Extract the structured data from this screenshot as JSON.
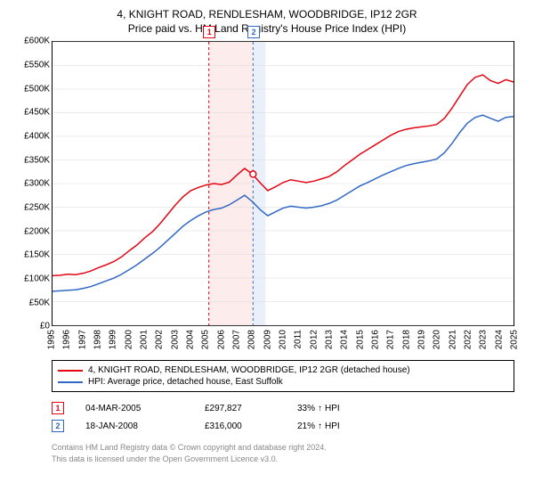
{
  "title_line1": "4, KNIGHT ROAD, RENDLESHAM, WOODBRIDGE, IP12 2GR",
  "title_line2": "Price paid vs. HM Land Registry's House Price Index (HPI)",
  "chart": {
    "type": "line",
    "background_color": "#ffffff",
    "border_color": "#000000",
    "grid_color": "#d9d9d9",
    "x_min": 1995,
    "x_max": 2025,
    "y_min": 0,
    "y_max": 600000,
    "y_tick_step": 50000,
    "y_tick_labels": [
      "£0",
      "£50K",
      "£100K",
      "£150K",
      "£200K",
      "£250K",
      "£300K",
      "£350K",
      "£400K",
      "£450K",
      "£500K",
      "£550K",
      "£600K"
    ],
    "x_ticks": [
      1995,
      1996,
      1997,
      1998,
      1999,
      2000,
      2001,
      2002,
      2003,
      2004,
      2005,
      2006,
      2007,
      2008,
      2009,
      2010,
      2011,
      2012,
      2013,
      2014,
      2015,
      2016,
      2017,
      2018,
      2019,
      2020,
      2021,
      2022,
      2023,
      2024,
      2025
    ],
    "tick_fontsize": 10,
    "title_fontsize": 12,
    "line_width": 1.5,
    "series": [
      {
        "label": "4, KNIGHT ROAD, RENDLESHAM, WOODBRIDGE, IP12 2GR (detached house)",
        "color": "#e30613",
        "data": [
          [
            1995,
            105000
          ],
          [
            1995.5,
            106000
          ],
          [
            1996,
            108000
          ],
          [
            1996.5,
            107000
          ],
          [
            1997,
            110000
          ],
          [
            1997.5,
            115000
          ],
          [
            1998,
            122000
          ],
          [
            1998.5,
            128000
          ],
          [
            1999,
            135000
          ],
          [
            1999.5,
            145000
          ],
          [
            2000,
            158000
          ],
          [
            2000.5,
            170000
          ],
          [
            2001,
            185000
          ],
          [
            2001.5,
            198000
          ],
          [
            2002,
            215000
          ],
          [
            2002.5,
            235000
          ],
          [
            2003,
            255000
          ],
          [
            2003.5,
            272000
          ],
          [
            2004,
            285000
          ],
          [
            2004.5,
            292000
          ],
          [
            2005,
            297000
          ],
          [
            2005.5,
            300000
          ],
          [
            2006,
            298000
          ],
          [
            2006.5,
            303000
          ],
          [
            2007,
            318000
          ],
          [
            2007.5,
            332000
          ],
          [
            2008,
            320000
          ],
          [
            2008.5,
            302000
          ],
          [
            2009,
            285000
          ],
          [
            2009.5,
            293000
          ],
          [
            2010,
            302000
          ],
          [
            2010.5,
            308000
          ],
          [
            2011,
            305000
          ],
          [
            2011.5,
            302000
          ],
          [
            2012,
            305000
          ],
          [
            2012.5,
            310000
          ],
          [
            2013,
            315000
          ],
          [
            2013.5,
            325000
          ],
          [
            2014,
            338000
          ],
          [
            2014.5,
            350000
          ],
          [
            2015,
            362000
          ],
          [
            2015.5,
            372000
          ],
          [
            2016,
            382000
          ],
          [
            2016.5,
            392000
          ],
          [
            2017,
            402000
          ],
          [
            2017.5,
            410000
          ],
          [
            2018,
            415000
          ],
          [
            2018.5,
            418000
          ],
          [
            2019,
            420000
          ],
          [
            2019.5,
            422000
          ],
          [
            2020,
            425000
          ],
          [
            2020.5,
            438000
          ],
          [
            2021,
            460000
          ],
          [
            2021.5,
            485000
          ],
          [
            2022,
            510000
          ],
          [
            2022.5,
            525000
          ],
          [
            2023,
            530000
          ],
          [
            2023.5,
            518000
          ],
          [
            2024,
            512000
          ],
          [
            2024.5,
            520000
          ],
          [
            2025,
            515000
          ]
        ]
      },
      {
        "label": "HPI: Average price, detached house, East Suffolk",
        "color": "#3168c5",
        "data": [
          [
            1995,
            72000
          ],
          [
            1995.5,
            73000
          ],
          [
            1996,
            74000
          ],
          [
            1996.5,
            75000
          ],
          [
            1997,
            78000
          ],
          [
            1997.5,
            82000
          ],
          [
            1998,
            88000
          ],
          [
            1998.5,
            94000
          ],
          [
            1999,
            100000
          ],
          [
            1999.5,
            108000
          ],
          [
            2000,
            118000
          ],
          [
            2000.5,
            128000
          ],
          [
            2001,
            140000
          ],
          [
            2001.5,
            152000
          ],
          [
            2002,
            165000
          ],
          [
            2002.5,
            180000
          ],
          [
            2003,
            195000
          ],
          [
            2003.5,
            210000
          ],
          [
            2004,
            222000
          ],
          [
            2004.5,
            232000
          ],
          [
            2005,
            240000
          ],
          [
            2005.5,
            245000
          ],
          [
            2006,
            248000
          ],
          [
            2006.5,
            255000
          ],
          [
            2007,
            265000
          ],
          [
            2007.5,
            275000
          ],
          [
            2008,
            262000
          ],
          [
            2008.5,
            245000
          ],
          [
            2009,
            232000
          ],
          [
            2009.5,
            240000
          ],
          [
            2010,
            248000
          ],
          [
            2010.5,
            252000
          ],
          [
            2011,
            250000
          ],
          [
            2011.5,
            248000
          ],
          [
            2012,
            250000
          ],
          [
            2012.5,
            253000
          ],
          [
            2013,
            258000
          ],
          [
            2013.5,
            265000
          ],
          [
            2014,
            275000
          ],
          [
            2014.5,
            285000
          ],
          [
            2015,
            295000
          ],
          [
            2015.5,
            302000
          ],
          [
            2016,
            310000
          ],
          [
            2016.5,
            318000
          ],
          [
            2017,
            325000
          ],
          [
            2017.5,
            332000
          ],
          [
            2018,
            338000
          ],
          [
            2018.5,
            342000
          ],
          [
            2019,
            345000
          ],
          [
            2019.5,
            348000
          ],
          [
            2020,
            352000
          ],
          [
            2020.5,
            365000
          ],
          [
            2021,
            385000
          ],
          [
            2021.5,
            408000
          ],
          [
            2022,
            428000
          ],
          [
            2022.5,
            440000
          ],
          [
            2023,
            445000
          ],
          [
            2023.5,
            438000
          ],
          [
            2024,
            432000
          ],
          [
            2024.5,
            440000
          ],
          [
            2025,
            442000
          ]
        ]
      }
    ],
    "sale_markers": [
      {
        "num": "1",
        "year": 2005.17,
        "color": "#e30613",
        "band_color": "#fdecec"
      },
      {
        "num": "2",
        "year": 2008.05,
        "color": "#3168c5",
        "band_color": "#eaf0fa"
      }
    ]
  },
  "sales": [
    {
      "num": "1",
      "color": "#e30613",
      "date": "04-MAR-2005",
      "price": "£297,827",
      "hpi_pct": "33%",
      "hpi_dir": "↑",
      "hpi_label": "HPI"
    },
    {
      "num": "2",
      "color": "#3168c5",
      "date": "18-JAN-2008",
      "price": "£316,000",
      "hpi_pct": "21%",
      "hpi_dir": "↑",
      "hpi_label": "HPI"
    }
  ],
  "footer_line1": "Contains HM Land Registry data © Crown copyright and database right 2024.",
  "footer_line2": "This data is licensed under the Open Government Licence v3.0."
}
